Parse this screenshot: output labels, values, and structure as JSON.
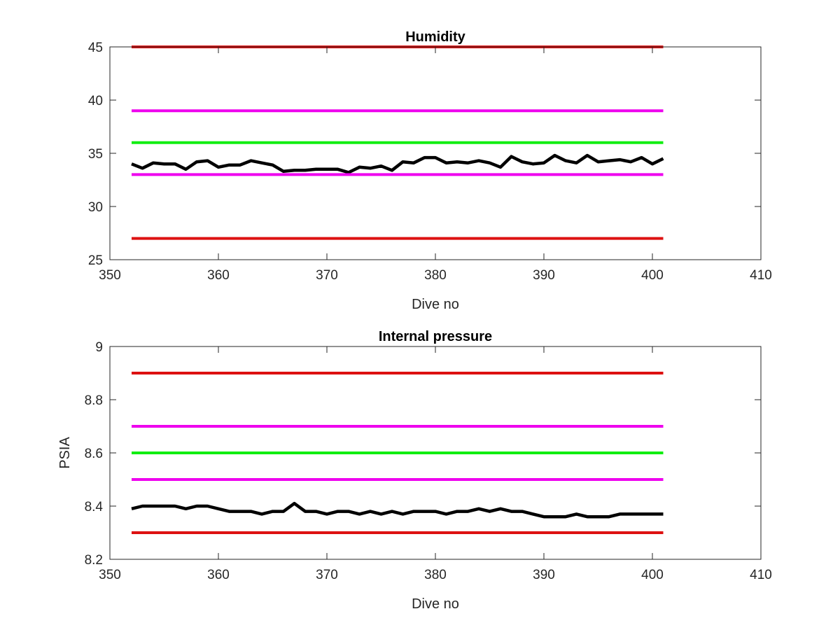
{
  "chart_data": [
    {
      "type": "line",
      "title": "Humidity",
      "xlabel": "Dive no",
      "ylabel": "",
      "xlim": [
        350,
        410
      ],
      "ylim": [
        25,
        45
      ],
      "xticks": [
        350,
        360,
        370,
        380,
        390,
        400,
        410
      ],
      "yticks": [
        25,
        30,
        35,
        40,
        45
      ],
      "grid": false,
      "series": [
        {
          "color": "#000000",
          "x": [
            352,
            353,
            354,
            355,
            356,
            357,
            358,
            359,
            360,
            361,
            362,
            363,
            364,
            365,
            366,
            367,
            368,
            369,
            370,
            371,
            372,
            373,
            374,
            375,
            376,
            377,
            378,
            379,
            380,
            381,
            382,
            383,
            384,
            385,
            386,
            387,
            388,
            389,
            390,
            391,
            392,
            393,
            394,
            395,
            396,
            397,
            398,
            399,
            400,
            401
          ],
          "values": [
            34.0,
            33.6,
            34.1,
            34.0,
            34.0,
            33.5,
            34.2,
            34.3,
            33.7,
            33.9,
            33.9,
            34.3,
            34.1,
            33.9,
            33.3,
            33.4,
            33.4,
            33.5,
            33.5,
            33.5,
            33.2,
            33.7,
            33.6,
            33.8,
            33.4,
            34.2,
            34.1,
            34.6,
            34.6,
            34.1,
            34.2,
            34.1,
            34.3,
            34.1,
            33.7,
            34.7,
            34.2,
            34.0,
            34.1,
            34.8,
            34.3,
            34.1,
            34.8,
            34.2,
            34.3,
            34.4,
            34.2,
            34.6,
            34.0,
            34.5
          ]
        },
        {
          "color": "#dd1111",
          "x": [
            352,
            401
          ],
          "values": [
            45,
            45
          ]
        },
        {
          "color": "#ee00ee",
          "x": [
            352,
            401
          ],
          "values": [
            39,
            39
          ]
        },
        {
          "color": "#11ee11",
          "x": [
            352,
            401
          ],
          "values": [
            36,
            36
          ]
        },
        {
          "color": "#ee00ee",
          "x": [
            352,
            401
          ],
          "values": [
            33,
            33
          ]
        },
        {
          "color": "#dd1111",
          "x": [
            352,
            401
          ],
          "values": [
            27,
            27
          ]
        }
      ]
    },
    {
      "type": "line",
      "title": "Internal pressure",
      "xlabel": "Dive no",
      "ylabel": "PSIA",
      "xlim": [
        350,
        410
      ],
      "ylim": [
        8.2,
        9.0
      ],
      "xticks": [
        350,
        360,
        370,
        380,
        390,
        400,
        410
      ],
      "yticks": [
        8.2,
        8.4,
        8.6,
        8.8,
        9
      ],
      "yticklabels": [
        "8.2",
        "8.4",
        "8.6",
        "8.8",
        "9"
      ],
      "grid": false,
      "series": [
        {
          "color": "#000000",
          "x": [
            352,
            353,
            354,
            355,
            356,
            357,
            358,
            359,
            360,
            361,
            362,
            363,
            364,
            365,
            366,
            367,
            368,
            369,
            370,
            371,
            372,
            373,
            374,
            375,
            376,
            377,
            378,
            379,
            380,
            381,
            382,
            383,
            384,
            385,
            386,
            387,
            388,
            389,
            390,
            391,
            392,
            393,
            394,
            395,
            396,
            397,
            398,
            399,
            400,
            401
          ],
          "values": [
            8.39,
            8.4,
            8.4,
            8.4,
            8.4,
            8.39,
            8.4,
            8.4,
            8.39,
            8.38,
            8.38,
            8.38,
            8.37,
            8.38,
            8.38,
            8.41,
            8.38,
            8.38,
            8.37,
            8.38,
            8.38,
            8.37,
            8.38,
            8.37,
            8.38,
            8.37,
            8.38,
            8.38,
            8.38,
            8.37,
            8.38,
            8.38,
            8.39,
            8.38,
            8.39,
            8.38,
            8.38,
            8.37,
            8.36,
            8.36,
            8.36,
            8.37,
            8.36,
            8.36,
            8.36,
            8.37,
            8.37,
            8.37,
            8.37,
            8.37
          ]
        },
        {
          "color": "#dd1111",
          "x": [
            352,
            401
          ],
          "values": [
            8.9,
            8.9
          ]
        },
        {
          "color": "#ee00ee",
          "x": [
            352,
            401
          ],
          "values": [
            8.7,
            8.7
          ]
        },
        {
          "color": "#11ee11",
          "x": [
            352,
            401
          ],
          "values": [
            8.6,
            8.6
          ]
        },
        {
          "color": "#ee00ee",
          "x": [
            352,
            401
          ],
          "values": [
            8.5,
            8.5
          ]
        },
        {
          "color": "#dd1111",
          "x": [
            352,
            401
          ],
          "values": [
            8.3,
            8.3
          ]
        }
      ]
    }
  ]
}
